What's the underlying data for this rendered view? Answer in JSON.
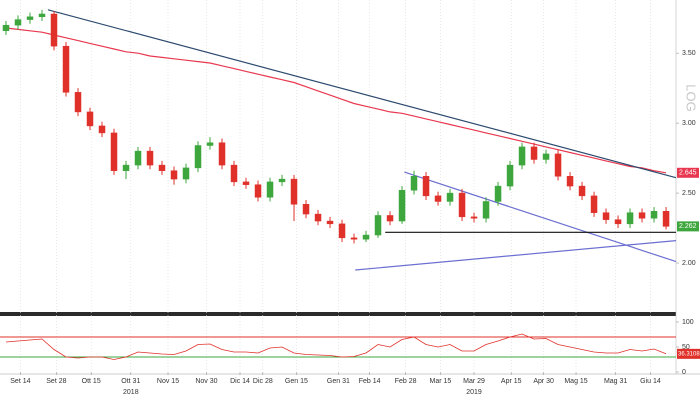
{
  "chart_data": {
    "type": "candlestick",
    "xlim": [
      -0.5,
      55.83
    ],
    "ylim": [
      1.65,
      3.88
    ],
    "yticks": [
      {
        "value": 3.5,
        "label": "3.50"
      },
      {
        "value": 3,
        "label": "3.00"
      },
      {
        "value": 2.5,
        "label": "2.50"
      },
      {
        "value": 2,
        "label": "2.00"
      }
    ],
    "xticks": [
      {
        "value": 1.2,
        "label": "Set 14"
      },
      {
        "value": 4.2,
        "label": "Set 28"
      },
      {
        "value": 7.1,
        "label": "Ott 15"
      },
      {
        "value": 10.4,
        "label": "Ott 31"
      },
      {
        "value": 13.5,
        "label": "Nov 15"
      },
      {
        "value": 16.7,
        "label": "Nov 30"
      },
      {
        "value": 19.5,
        "label": "Dic 14"
      },
      {
        "value": 21.4,
        "label": "Dic 28"
      },
      {
        "value": 24.2,
        "label": "Gen 15"
      },
      {
        "value": 27.7,
        "label": "Gen 31"
      },
      {
        "value": 30.3,
        "label": "Feb 14"
      },
      {
        "value": 33.3,
        "label": "Feb 28"
      },
      {
        "value": 36.2,
        "label": "Mar 15"
      },
      {
        "value": 39,
        "label": "Mar 29"
      },
      {
        "value": 42.1,
        "label": "Apr 15"
      },
      {
        "value": 44.8,
        "label": "Apr 30"
      },
      {
        "value": 47.5,
        "label": "Mag 15"
      },
      {
        "value": 50.8,
        "label": "Mag 31"
      },
      {
        "value": 53.7,
        "label": "Giu 14"
      }
    ],
    "year_ticks": [
      {
        "value": 10.4,
        "label": "2018"
      },
      {
        "value": 39,
        "label": "2019"
      }
    ],
    "candles": {
      "up_color": "#3da63d",
      "down_color": "#e0302a",
      "open": [
        3.66,
        3.7,
        3.74,
        3.76,
        3.78,
        3.55,
        3.22,
        3.08,
        2.98,
        2.93,
        2.66,
        2.7,
        2.8,
        2.7,
        2.66,
        2.6,
        2.68,
        2.84,
        2.86,
        2.7,
        2.58,
        2.56,
        2.47,
        2.58,
        2.6,
        2.42,
        2.35,
        2.3,
        2.28,
        2.18,
        2.17,
        2.2,
        2.34,
        2.3,
        2.52,
        2.62,
        2.48,
        2.44,
        2.5,
        2.33,
        2.32,
        2.44,
        2.55,
        2.7,
        2.83,
        2.74,
        2.78,
        2.62,
        2.55,
        2.48,
        2.36,
        2.31,
        2.28,
        2.36,
        2.32,
        2.37
      ],
      "high": [
        3.73,
        3.77,
        3.79,
        3.81,
        3.8,
        3.58,
        3.25,
        3.11,
        3.01,
        2.96,
        2.73,
        2.83,
        2.83,
        2.73,
        2.69,
        2.71,
        2.87,
        2.9,
        2.89,
        2.73,
        2.61,
        2.59,
        2.61,
        2.63,
        2.63,
        2.45,
        2.38,
        2.33,
        2.31,
        2.21,
        2.23,
        2.37,
        2.37,
        2.55,
        2.66,
        2.65,
        2.51,
        2.53,
        2.53,
        2.36,
        2.47,
        2.58,
        2.73,
        2.86,
        2.86,
        2.81,
        2.81,
        2.65,
        2.58,
        2.51,
        2.39,
        2.34,
        2.39,
        2.39,
        2.4,
        2.4
      ],
      "low": [
        3.63,
        3.67,
        3.71,
        3.73,
        3.52,
        3.19,
        3.05,
        2.95,
        2.9,
        2.63,
        2.6,
        2.67,
        2.67,
        2.63,
        2.56,
        2.57,
        2.65,
        2.81,
        2.67,
        2.55,
        2.53,
        2.44,
        2.44,
        2.55,
        2.3,
        2.32,
        2.27,
        2.25,
        2.15,
        2.14,
        2.15,
        2.18,
        2.27,
        2.28,
        2.49,
        2.45,
        2.41,
        2.41,
        2.3,
        2.29,
        2.29,
        2.41,
        2.52,
        2.67,
        2.71,
        2.71,
        2.59,
        2.52,
        2.45,
        2.33,
        2.28,
        2.25,
        2.25,
        2.29,
        2.29,
        2.24
      ],
      "close": [
        3.7,
        3.74,
        3.76,
        3.78,
        3.55,
        3.22,
        3.08,
        2.98,
        2.93,
        2.66,
        2.7,
        2.8,
        2.7,
        2.66,
        2.6,
        2.68,
        2.84,
        2.86,
        2.7,
        2.58,
        2.56,
        2.47,
        2.58,
        2.6,
        2.42,
        2.35,
        2.3,
        2.28,
        2.18,
        2.17,
        2.2,
        2.34,
        2.3,
        2.52,
        2.62,
        2.48,
        2.44,
        2.5,
        2.33,
        2.32,
        2.44,
        2.55,
        2.7,
        2.83,
        2.74,
        2.78,
        2.62,
        2.55,
        2.48,
        2.36,
        2.31,
        2.28,
        2.36,
        2.32,
        2.37,
        2.262
      ]
    },
    "ma": {
      "color": "#e8384f",
      "values": [
        3.68,
        3.67,
        3.66,
        3.65,
        3.63,
        3.61,
        3.59,
        3.57,
        3.55,
        3.53,
        3.51,
        3.5,
        3.48,
        3.47,
        3.46,
        3.45,
        3.44,
        3.43,
        3.41,
        3.39,
        3.37,
        3.35,
        3.33,
        3.31,
        3.29,
        3.26,
        3.23,
        3.2,
        3.17,
        3.14,
        3.12,
        3.1,
        3.08,
        3.07,
        3.05,
        3.03,
        3.01,
        2.99,
        2.97,
        2.95,
        2.93,
        2.91,
        2.89,
        2.87,
        2.85,
        2.83,
        2.81,
        2.79,
        2.77,
        2.75,
        2.73,
        2.71,
        2.69,
        2.68,
        2.66,
        2.645
      ]
    },
    "trendlines": [
      {
        "color": "#2c4a6e",
        "x": [
          3.5,
          55.83
        ],
        "values": [
          3.81,
          2.61
        ]
      },
      {
        "color": "#6b6fd0",
        "x": [
          33.2,
          55.83
        ],
        "values": [
          2.65,
          2.01
        ]
      },
      {
        "color": "#6b6fd0",
        "x": [
          29.1,
          55.83
        ],
        "values": [
          1.95,
          2.16
        ]
      },
      {
        "color": "#111111",
        "x": [
          31.6,
          55.83
        ],
        "values": [
          2.22,
          2.22
        ]
      }
    ],
    "last_price": 2.262,
    "last_price_color": "#3da63d",
    "ma_label": 2.645,
    "log_button": "LOG",
    "rsi": {
      "color": "#e0302a",
      "ylim": [
        0,
        100
      ],
      "yticks": [
        0,
        50,
        100
      ],
      "upper": 70,
      "upper_color": "#e0302a",
      "lower": 30,
      "lower_color": "#3da63d",
      "values": [
        60,
        62,
        64,
        66,
        45,
        30,
        28,
        30,
        30,
        25,
        30,
        40,
        38,
        36,
        35,
        42,
        55,
        56,
        45,
        40,
        40,
        38,
        48,
        50,
        38,
        35,
        34,
        33,
        30,
        31,
        38,
        55,
        50,
        65,
        70,
        55,
        50,
        55,
        42,
        42,
        55,
        62,
        70,
        76,
        66,
        67,
        55,
        50,
        45,
        40,
        38,
        38,
        45,
        42,
        46,
        36.3108
      ],
      "last_label": 36.3108
    }
  }
}
